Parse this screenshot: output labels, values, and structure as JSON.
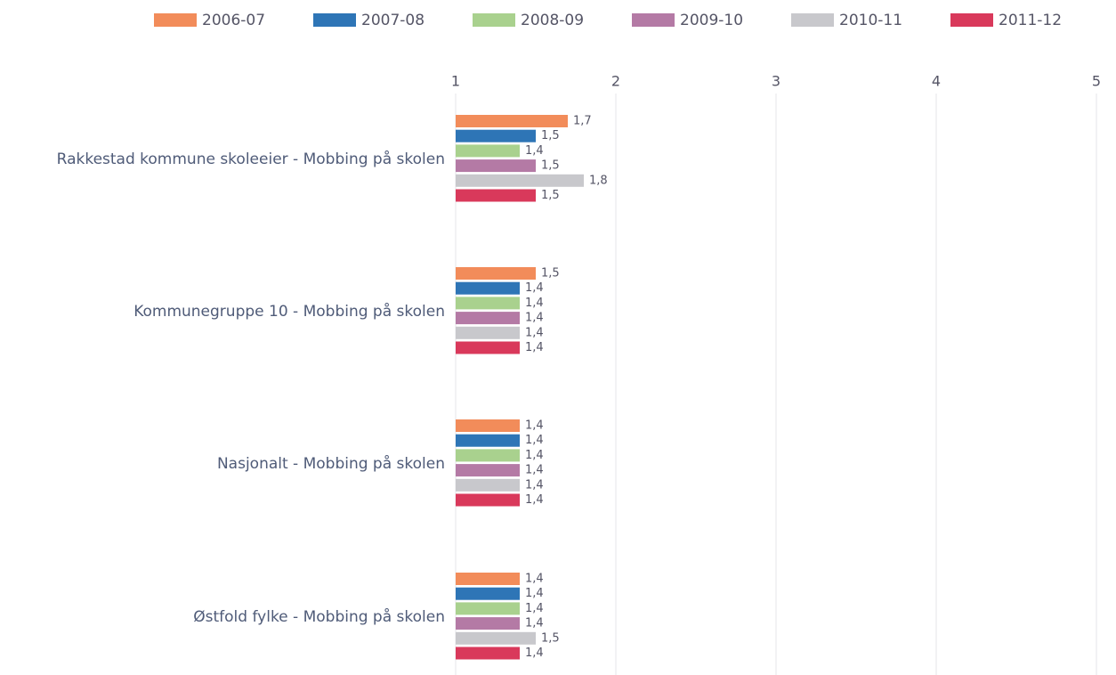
{
  "chart_data": {
    "type": "hbar",
    "categories": [
      "Rakkestad kommune skoleeier - Mobbing på skolen",
      "Kommunegruppe 10 - Mobbing på skolen",
      "Nasjonalt - Mobbing på skolen",
      "Østfold fylke - Mobbing på skolen"
    ],
    "series": [
      {
        "name": "2006-07",
        "color": "#f28c5a",
        "values": [
          1.7,
          1.5,
          1.4,
          1.4
        ],
        "value_labels": [
          "1,7",
          "1,5",
          "1,4",
          "1,4"
        ]
      },
      {
        "name": "2007-08",
        "color": "#2e75b6",
        "values": [
          1.5,
          1.4,
          1.4,
          1.4
        ],
        "value_labels": [
          "1,5",
          "1,4",
          "1,4",
          "1,4"
        ]
      },
      {
        "name": "2008-09",
        "color": "#a9d18e",
        "values": [
          1.4,
          1.4,
          1.4,
          1.4
        ],
        "value_labels": [
          "1,4",
          "1,4",
          "1,4",
          "1,4"
        ]
      },
      {
        "name": "2009-10",
        "color": "#b47aa5",
        "values": [
          1.5,
          1.4,
          1.4,
          1.4
        ],
        "value_labels": [
          "1,5",
          "1,4",
          "1,4",
          "1,4"
        ]
      },
      {
        "name": "2010-11",
        "color": "#c8c8cc",
        "values": [
          1.8,
          1.4,
          1.4,
          1.5
        ],
        "value_labels": [
          "1,8",
          "1,4",
          "1,4",
          "1,5"
        ]
      },
      {
        "name": "2011-12",
        "color": "#d9395b",
        "values": [
          1.5,
          1.4,
          1.4,
          1.4
        ],
        "value_labels": [
          "1,5",
          "1,4",
          "1,4",
          "1,4"
        ]
      }
    ],
    "xlim": [
      1,
      5
    ],
    "xticks": [
      1,
      2,
      3,
      4,
      5
    ],
    "grid": true,
    "legend": "top"
  }
}
